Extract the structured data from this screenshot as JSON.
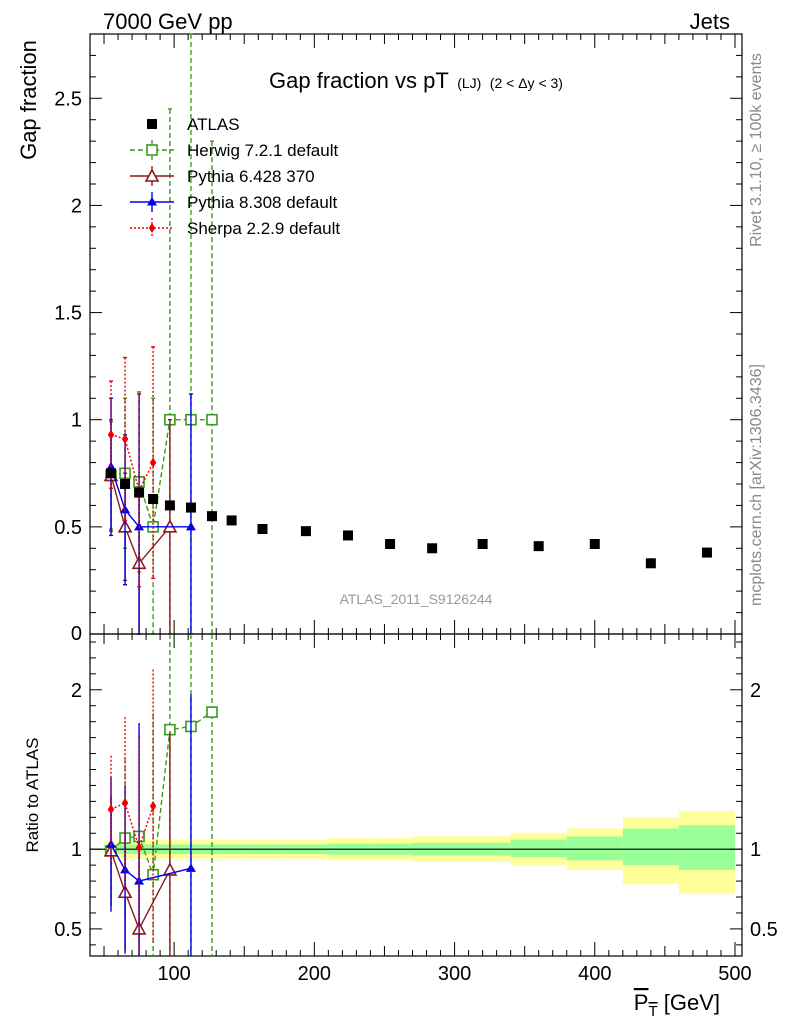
{
  "header": {
    "left": "7000 GeV pp",
    "right": "Jets"
  },
  "side_text": {
    "rivet": "Rivet 3.1.10, ≥ 100k events",
    "mcplots": "mcplots.cern.ch [arXiv:1306.3436]"
  },
  "watermark": "ATLAS_2011_S9126244",
  "chart_data": [
    {
      "type": "scatter",
      "title": "Gap fraction vs pT",
      "title_sub": "(LJ)",
      "title_cond": "(2 < Δy < 3)",
      "ylabel": "Gap fraction",
      "xlim": [
        40,
        505
      ],
      "ylim": [
        0,
        2.8
      ],
      "y_ticks": [
        0.5,
        1,
        1.5,
        2,
        2.5
      ],
      "y_tick_labels": [
        "0.5",
        "1",
        "1.5",
        "2",
        "2.5"
      ],
      "y_zero_label": "0",
      "legend_position": "top-left",
      "series": [
        {
          "name": "ATLAS",
          "color": "#000000",
          "marker": "square-filled",
          "x": [
            55,
            65,
            75,
            85,
            97,
            112,
            127,
            141,
            163,
            194,
            224,
            254,
            284,
            320,
            360,
            400,
            440,
            480
          ],
          "y": [
            0.75,
            0.7,
            0.66,
            0.63,
            0.6,
            0.59,
            0.55,
            0.53,
            0.49,
            0.48,
            0.46,
            0.42,
            0.4,
            0.42,
            0.41,
            0.42,
            0.33,
            0.38
          ]
        },
        {
          "name": "Herwig 7.2.1 default",
          "color": "#3a9a1e",
          "marker": "square-open",
          "line": "dashed",
          "x": [
            55,
            65,
            75,
            85,
            97,
            112,
            127
          ],
          "y": [
            0.74,
            0.75,
            0.71,
            0.5,
            1.0,
            1.0,
            1.0
          ],
          "err": [
            0.25,
            0.35,
            0.42,
            0.6,
            1.45,
            2.6,
            1.3
          ]
        },
        {
          "name": "Pythia 6.428 370",
          "color": "#8b1a1a",
          "marker": "triangle-open",
          "line": "solid",
          "x": [
            55,
            65,
            75,
            97
          ],
          "y": [
            0.74,
            0.5,
            0.33,
            0.5
          ],
          "err": [
            0.26,
            0.25,
            0.35,
            0.5
          ]
        },
        {
          "name": "Pythia 8.308 default",
          "color": "#0000ee",
          "marker": "triangle-filled",
          "line": "solid",
          "x": [
            55,
            65,
            75,
            112
          ],
          "y": [
            0.78,
            0.58,
            0.5,
            0.5
          ],
          "err": [
            0.32,
            0.35,
            0.62,
            0.62
          ]
        },
        {
          "name": "Sherpa 2.2.9 default",
          "color": "#ee0000",
          "marker": "diamond-filled",
          "line": "dotted",
          "x": [
            55,
            65,
            75,
            85
          ],
          "y": [
            0.93,
            0.91,
            0.67,
            0.8
          ],
          "err": [
            0.25,
            0.38,
            0.45,
            0.54
          ]
        }
      ]
    },
    {
      "type": "scatter",
      "ylabel": "Ratio to ATLAS",
      "xlabel": "P_T [GeV]",
      "xlim": [
        40,
        505
      ],
      "ylim": [
        0.33,
        2.35
      ],
      "y_ticks": [
        0.5,
        1,
        2
      ],
      "y_tick_labels": [
        "0.5",
        "1",
        "2"
      ],
      "x_ticks": [
        100,
        200,
        300,
        400,
        500
      ],
      "x_tick_labels": [
        "100",
        "200",
        "300",
        "400",
        "500"
      ],
      "bands": {
        "edges": [
          50,
          60,
          70,
          80,
          90,
          105,
          120,
          135,
          150,
          180,
          210,
          240,
          270,
          300,
          340,
          380,
          420,
          460,
          500
        ],
        "inner_lo": [
          0.98,
          0.97,
          0.97,
          0.97,
          0.97,
          0.97,
          0.97,
          0.97,
          0.97,
          0.97,
          0.965,
          0.965,
          0.96,
          0.96,
          0.95,
          0.93,
          0.9,
          0.87
        ],
        "inner_hi": [
          1.02,
          1.03,
          1.03,
          1.03,
          1.03,
          1.03,
          1.03,
          1.03,
          1.03,
          1.03,
          1.035,
          1.035,
          1.04,
          1.04,
          1.06,
          1.08,
          1.13,
          1.15
        ],
        "outer_lo": [
          0.95,
          0.94,
          0.94,
          0.94,
          0.94,
          0.94,
          0.94,
          0.94,
          0.94,
          0.94,
          0.93,
          0.93,
          0.92,
          0.92,
          0.9,
          0.87,
          0.78,
          0.72
        ],
        "outer_hi": [
          1.05,
          1.06,
          1.06,
          1.06,
          1.06,
          1.06,
          1.06,
          1.06,
          1.06,
          1.06,
          1.07,
          1.07,
          1.08,
          1.08,
          1.1,
          1.13,
          1.2,
          1.24
        ],
        "inner_color": "#99ff99",
        "outer_color": "#ffff99"
      },
      "series": [
        {
          "name": "Herwig 7.2.1 default",
          "color": "#3a9a1e",
          "marker": "square-open",
          "line": "dashed",
          "x": [
            55,
            65,
            75,
            85,
            97,
            112,
            127
          ],
          "y": [
            0.99,
            1.07,
            1.08,
            0.84,
            1.75,
            1.77,
            1.86
          ]
        },
        {
          "name": "Pythia 6.428 370",
          "color": "#8b1a1a",
          "marker": "triangle-open",
          "line": "solid",
          "x": [
            55,
            65,
            75,
            97
          ],
          "y": [
            0.99,
            0.73,
            0.5,
            0.87
          ]
        },
        {
          "name": "Pythia 8.308 default",
          "color": "#0000ee",
          "marker": "triangle-filled",
          "line": "solid",
          "x": [
            55,
            65,
            75,
            112
          ],
          "y": [
            1.03,
            0.87,
            0.8,
            0.88
          ]
        },
        {
          "name": "Sherpa 2.2.9 default",
          "color": "#ee0000",
          "marker": "diamond-filled",
          "line": "dotted",
          "x": [
            55,
            65,
            75,
            85
          ],
          "y": [
            1.25,
            1.29,
            1.01,
            1.27
          ]
        }
      ]
    }
  ]
}
